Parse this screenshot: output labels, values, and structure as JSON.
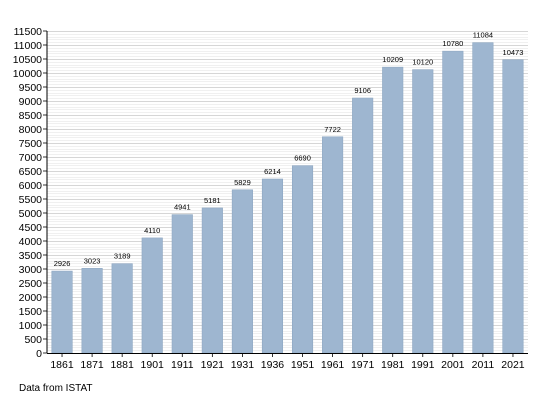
{
  "colors": {
    "bar": "#9eb6d0",
    "bar_stroke": "#8ea7c2",
    "grid": "#c8c8c8",
    "axis": "#000000",
    "text": "#000000"
  },
  "source_note": "Data from ISTAT",
  "chart_data": {
    "type": "bar",
    "title": "",
    "xlabel": "",
    "ylabel": "",
    "categories": [
      "1861",
      "1871",
      "1881",
      "1901",
      "1911",
      "1921",
      "1931",
      "1936",
      "1951",
      "1961",
      "1971",
      "1981",
      "1991",
      "2001",
      "2011",
      "2021"
    ],
    "values": [
      2926,
      3023,
      3189,
      4110,
      4941,
      5181,
      5829,
      6214,
      6690,
      7722,
      9106,
      10209,
      10120,
      10780,
      11084,
      10473
    ],
    "data_labels": [
      "2926",
      "3023",
      "3189",
      "4110",
      "4941",
      "5181",
      "5829",
      "6214",
      "6690",
      "7722",
      "9106",
      "10209",
      "10120",
      "10780",
      "11084",
      "10473"
    ],
    "ylim": [
      0,
      11500
    ],
    "y_ticks": [
      0,
      500,
      1000,
      1500,
      2000,
      2500,
      3000,
      3500,
      4000,
      4500,
      5000,
      5500,
      6000,
      6500,
      7000,
      7500,
      8000,
      8500,
      9000,
      9500,
      10000,
      10500,
      11000,
      11500
    ],
    "y_tick_labels": [
      "0",
      "500",
      "1000",
      "1500",
      "2000",
      "2500",
      "3000",
      "3500",
      "4000",
      "4500",
      "5000",
      "5500",
      "6000",
      "6500",
      "7000",
      "7500",
      "8000",
      "8500",
      "9000",
      "9500",
      "10000",
      "10500",
      "11000",
      "11500"
    ],
    "minor_grid_step": 100,
    "grid": true,
    "legend": "none"
  }
}
